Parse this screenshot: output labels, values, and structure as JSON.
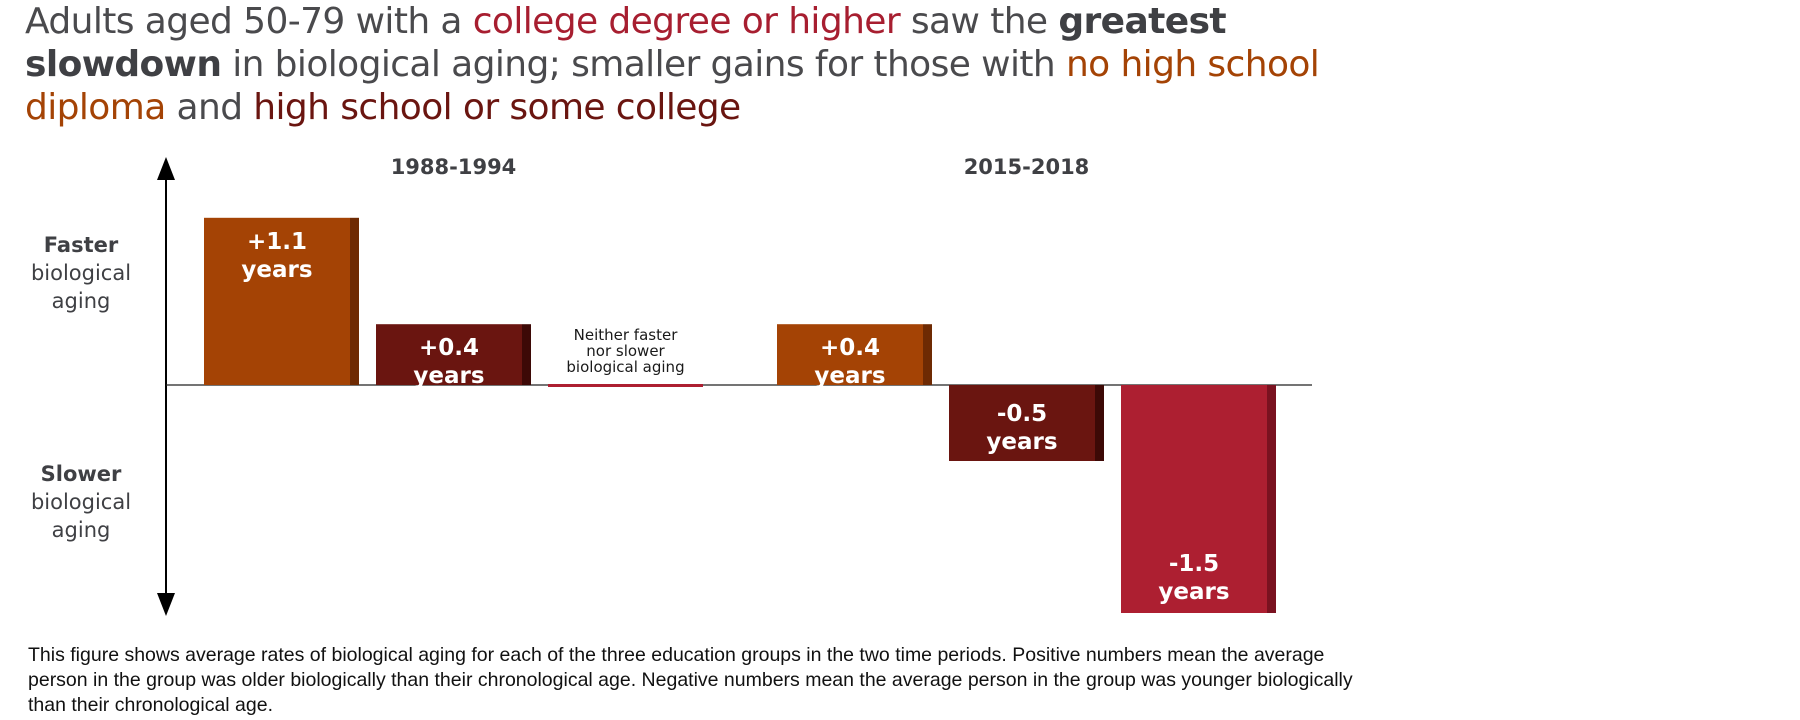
{
  "title": {
    "parts": [
      {
        "text": "Adults aged 50-79 with a ",
        "style": "plain"
      },
      {
        "text": "college degree or higher",
        "style": "c-college"
      },
      {
        "text": " saw the ",
        "style": "plain"
      },
      {
        "text": "greatest slowdown",
        "style": "bold"
      },
      {
        "text": " in biological aging; smaller gains for those with ",
        "style": "plain"
      },
      {
        "text": "no high school diploma",
        "style": "c-nohs"
      },
      {
        "text": " and ",
        "style": "plain"
      },
      {
        "text": "high school or some college",
        "style": "c-hs"
      }
    ]
  },
  "axis": {
    "top_label": [
      "Faster",
      "biological",
      "aging"
    ],
    "bottom_label": [
      "Slower",
      "biological",
      "aging"
    ]
  },
  "caption": "This figure shows average rates of biological aging for each of the three education groups in the two time periods. Positive numbers mean the average person in the group was older biologically than their chronological age. Negative numbers mean the average person in the group was younger biologically than their chronological age.",
  "colors": {
    "no_hs": "#a44305",
    "no_hs_side": "#6e2a03",
    "hs_some_college": "#6a1510",
    "hs_some_college_side": "#3d0906",
    "college": "#ad1f31",
    "college_side": "#7a1220",
    "axis": "#000000"
  },
  "chart_data": {
    "type": "bar",
    "title": "Adults aged 50-79 with a college degree or higher saw the greatest slowdown in biological aging; smaller gains for those with no high school diploma and high school or some college",
    "categories": [
      "1988-1994",
      "2015-2018"
    ],
    "series": [
      {
        "name": "no high school diploma",
        "values": [
          1.1,
          0.4
        ],
        "labels": [
          [
            "+1.1",
            "years"
          ],
          [
            "+0.4",
            "years"
          ]
        ]
      },
      {
        "name": "high school or some college",
        "values": [
          0.4,
          -0.5
        ],
        "labels": [
          [
            "+0.4",
            "years"
          ],
          [
            "-0.5",
            "years"
          ]
        ]
      },
      {
        "name": "college degree or higher",
        "values": [
          0.0,
          -1.5
        ],
        "labels": [
          [
            "Neither faster",
            "nor slower",
            "biological aging"
          ],
          [
            "-1.5",
            "years"
          ]
        ]
      }
    ],
    "ylim": [
      -1.5,
      1.5
    ],
    "grid": false
  }
}
